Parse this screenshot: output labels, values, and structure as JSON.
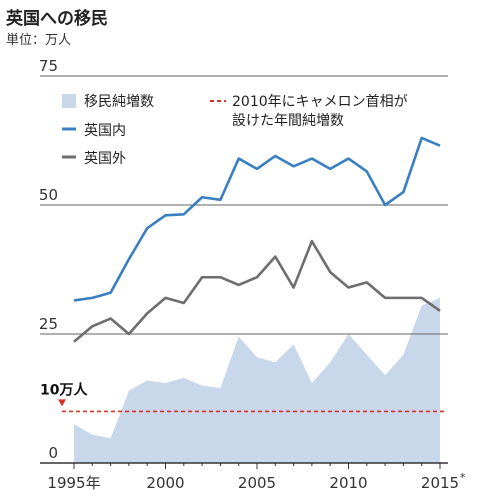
{
  "title": "英国への移民",
  "unit": "単位：万人",
  "chart_data": {
    "type": "line",
    "x": [
      1995,
      1996,
      1997,
      1998,
      1999,
      2000,
      2001,
      2002,
      2003,
      2004,
      2005,
      2006,
      2007,
      2008,
      2009,
      2010,
      2011,
      2012,
      2013,
      2014,
      2015
    ],
    "xticks": [
      {
        "value": 1995,
        "label": "1995年"
      },
      {
        "value": 2000,
        "label": "2000"
      },
      {
        "value": 2005,
        "label": "2005"
      },
      {
        "value": 2010,
        "label": "2010"
      },
      {
        "value": 2015,
        "label": "2015"
      }
    ],
    "x_footnote": "*",
    "yticks": [
      0,
      25,
      50,
      75
    ],
    "ylim": [
      0,
      75
    ],
    "grid": false,
    "series": [
      {
        "name": "移民純増数",
        "kind": "area",
        "color": "#c9d7ea",
        "values": [
          7.5,
          5.5,
          4.8,
          14.0,
          16.0,
          15.5,
          16.5,
          15.0,
          14.5,
          24.5,
          20.5,
          19.5,
          23.0,
          15.5,
          19.5,
          25.0,
          21.0,
          17.0,
          21.0,
          30.5,
          32.0
        ]
      },
      {
        "name": "英国内",
        "kind": "line",
        "color": "#3a80c1",
        "values": [
          31.5,
          32.0,
          33.0,
          39.5,
          45.5,
          48.0,
          48.2,
          51.5,
          51.0,
          59.0,
          57.0,
          59.5,
          57.5,
          59.0,
          57.0,
          59.0,
          56.5,
          50.0,
          52.5,
          63.0,
          61.5
        ]
      },
      {
        "name": "英国外",
        "kind": "line",
        "color": "#6e6e6e",
        "values": [
          23.5,
          26.5,
          28.0,
          25.0,
          29.0,
          32.0,
          31.0,
          36.0,
          36.0,
          34.5,
          36.0,
          40.0,
          34.0,
          43.0,
          37.0,
          34.0,
          35.0,
          32.0,
          32.0,
          32.0,
          29.5
        ]
      }
    ],
    "annotations": [
      {
        "type": "reference_line",
        "y": 10,
        "color": "#d9332a",
        "style": "dashed",
        "label": "10万人",
        "legend_label": "2010年にキャメロン首相が設けた年間純増数"
      }
    ],
    "legend_position": "top-left"
  }
}
